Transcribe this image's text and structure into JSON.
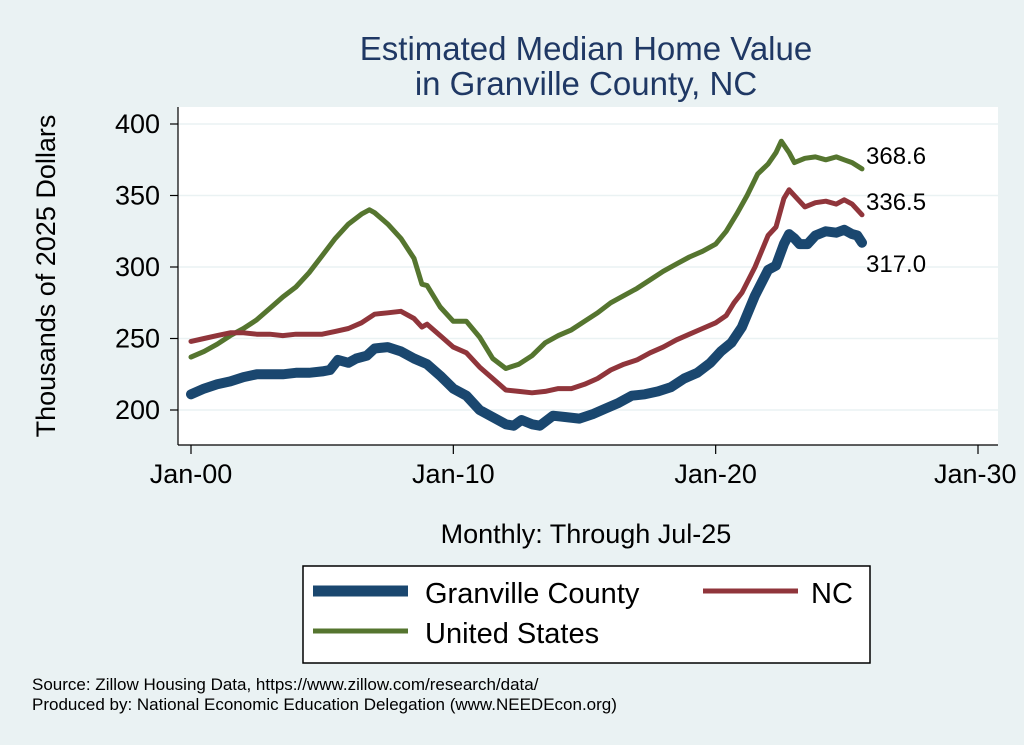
{
  "chart_data": {
    "type": "line",
    "title": [
      "Estimated Median Home Value",
      "in Granville County, NC"
    ],
    "xlabel": "Monthly: Through Jul-25",
    "ylabel": "Thousands of 2025 Dollars",
    "x_ticks": [
      "Jan-00",
      "Jan-10",
      "Jan-20",
      "Jan-30"
    ],
    "x_range": [
      2000,
      2030
    ],
    "ylim": [
      185,
      410
    ],
    "y_ticks": [
      200,
      250,
      300,
      350,
      400
    ],
    "grid": true,
    "legend_position": "bottom",
    "series": [
      {
        "name": "Granville County",
        "color": "#1a476f",
        "end_value": "317.0",
        "points": [
          [
            2000.0,
            211
          ],
          [
            2000.5,
            215
          ],
          [
            2001.0,
            218
          ],
          [
            2001.5,
            220
          ],
          [
            2002.0,
            223
          ],
          [
            2002.5,
            225
          ],
          [
            2003.0,
            225
          ],
          [
            2003.5,
            225
          ],
          [
            2004.0,
            226
          ],
          [
            2004.5,
            226
          ],
          [
            2005.0,
            227
          ],
          [
            2005.3,
            228
          ],
          [
            2005.6,
            235
          ],
          [
            2006.0,
            233
          ],
          [
            2006.3,
            236
          ],
          [
            2006.7,
            238
          ],
          [
            2007.0,
            243
          ],
          [
            2007.5,
            244
          ],
          [
            2008.0,
            241
          ],
          [
            2008.5,
            236
          ],
          [
            2009.0,
            232
          ],
          [
            2009.5,
            224
          ],
          [
            2010.0,
            215
          ],
          [
            2010.5,
            210
          ],
          [
            2011.0,
            200
          ],
          [
            2011.5,
            195
          ],
          [
            2012.0,
            190
          ],
          [
            2012.3,
            189
          ],
          [
            2012.6,
            193
          ],
          [
            2013.0,
            190
          ],
          [
            2013.3,
            189
          ],
          [
            2013.8,
            196
          ],
          [
            2014.3,
            195
          ],
          [
            2014.8,
            194
          ],
          [
            2015.3,
            197
          ],
          [
            2015.8,
            201
          ],
          [
            2016.3,
            205
          ],
          [
            2016.8,
            210
          ],
          [
            2017.3,
            211
          ],
          [
            2017.8,
            213
          ],
          [
            2018.3,
            216
          ],
          [
            2018.8,
            222
          ],
          [
            2019.3,
            226
          ],
          [
            2019.8,
            233
          ],
          [
            2020.2,
            241
          ],
          [
            2020.6,
            247
          ],
          [
            2021.0,
            258
          ],
          [
            2021.5,
            280
          ],
          [
            2022.0,
            298
          ],
          [
            2022.3,
            301
          ],
          [
            2022.6,
            316
          ],
          [
            2022.8,
            323
          ],
          [
            2023.0,
            320
          ],
          [
            2023.2,
            316
          ],
          [
            2023.5,
            316
          ],
          [
            2023.8,
            322
          ],
          [
            2024.2,
            325
          ],
          [
            2024.6,
            324
          ],
          [
            2024.9,
            326
          ],
          [
            2025.2,
            323
          ],
          [
            2025.4,
            322
          ],
          [
            2025.58,
            317
          ]
        ]
      },
      {
        "name": "NC",
        "color": "#90353b",
        "end_value": "336.5",
        "points": [
          [
            2000.0,
            248
          ],
          [
            2000.5,
            250
          ],
          [
            2001.0,
            252
          ],
          [
            2001.5,
            254
          ],
          [
            2002.0,
            254
          ],
          [
            2002.5,
            253
          ],
          [
            2003.0,
            253
          ],
          [
            2003.5,
            252
          ],
          [
            2004.0,
            253
          ],
          [
            2004.5,
            253
          ],
          [
            2005.0,
            253
          ],
          [
            2005.5,
            255
          ],
          [
            2006.0,
            257
          ],
          [
            2006.5,
            261
          ],
          [
            2007.0,
            267
          ],
          [
            2007.5,
            268
          ],
          [
            2008.0,
            269
          ],
          [
            2008.5,
            264
          ],
          [
            2008.8,
            258
          ],
          [
            2009.0,
            260
          ],
          [
            2009.5,
            252
          ],
          [
            2010.0,
            244
          ],
          [
            2010.5,
            240
          ],
          [
            2011.0,
            230
          ],
          [
            2011.5,
            222
          ],
          [
            2012.0,
            214
          ],
          [
            2012.5,
            213
          ],
          [
            2013.0,
            212
          ],
          [
            2013.5,
            213
          ],
          [
            2014.0,
            215
          ],
          [
            2014.5,
            215
          ],
          [
            2015.0,
            218
          ],
          [
            2015.5,
            222
          ],
          [
            2016.0,
            228
          ],
          [
            2016.5,
            232
          ],
          [
            2017.0,
            235
          ],
          [
            2017.5,
            240
          ],
          [
            2018.0,
            244
          ],
          [
            2018.5,
            249
          ],
          [
            2019.0,
            253
          ],
          [
            2019.5,
            257
          ],
          [
            2020.0,
            261
          ],
          [
            2020.4,
            266
          ],
          [
            2020.7,
            275
          ],
          [
            2021.0,
            282
          ],
          [
            2021.5,
            300
          ],
          [
            2022.0,
            322
          ],
          [
            2022.3,
            328
          ],
          [
            2022.6,
            348
          ],
          [
            2022.8,
            354
          ],
          [
            2023.1,
            348
          ],
          [
            2023.4,
            342
          ],
          [
            2023.8,
            345
          ],
          [
            2024.2,
            346
          ],
          [
            2024.6,
            344
          ],
          [
            2024.9,
            347
          ],
          [
            2025.2,
            344
          ],
          [
            2025.58,
            336.5
          ]
        ]
      },
      {
        "name": "United States",
        "color": "#55752f",
        "end_value": "368.6",
        "points": [
          [
            2000.0,
            237
          ],
          [
            2000.5,
            241
          ],
          [
            2001.0,
            246
          ],
          [
            2001.5,
            252
          ],
          [
            2002.0,
            257
          ],
          [
            2002.5,
            263
          ],
          [
            2003.0,
            271
          ],
          [
            2003.5,
            279
          ],
          [
            2004.0,
            286
          ],
          [
            2004.5,
            296
          ],
          [
            2005.0,
            308
          ],
          [
            2005.5,
            320
          ],
          [
            2006.0,
            330
          ],
          [
            2006.5,
            337
          ],
          [
            2006.8,
            340
          ],
          [
            2007.0,
            338
          ],
          [
            2007.5,
            330
          ],
          [
            2008.0,
            320
          ],
          [
            2008.5,
            306
          ],
          [
            2008.8,
            288
          ],
          [
            2009.0,
            287
          ],
          [
            2009.5,
            272
          ],
          [
            2010.0,
            262
          ],
          [
            2010.5,
            262
          ],
          [
            2011.0,
            251
          ],
          [
            2011.5,
            236
          ],
          [
            2012.0,
            229
          ],
          [
            2012.5,
            232
          ],
          [
            2013.0,
            238
          ],
          [
            2013.5,
            247
          ],
          [
            2014.0,
            252
          ],
          [
            2014.5,
            256
          ],
          [
            2015.0,
            262
          ],
          [
            2015.5,
            268
          ],
          [
            2016.0,
            275
          ],
          [
            2016.5,
            280
          ],
          [
            2017.0,
            285
          ],
          [
            2017.5,
            291
          ],
          [
            2018.0,
            297
          ],
          [
            2018.5,
            302
          ],
          [
            2019.0,
            307
          ],
          [
            2019.5,
            311
          ],
          [
            2020.0,
            316
          ],
          [
            2020.4,
            325
          ],
          [
            2020.8,
            337
          ],
          [
            2021.2,
            350
          ],
          [
            2021.6,
            365
          ],
          [
            2022.0,
            372
          ],
          [
            2022.3,
            380
          ],
          [
            2022.5,
            388
          ],
          [
            2022.8,
            380
          ],
          [
            2023.0,
            373
          ],
          [
            2023.4,
            376
          ],
          [
            2023.8,
            377
          ],
          [
            2024.2,
            375
          ],
          [
            2024.6,
            377
          ],
          [
            2024.9,
            375
          ],
          [
            2025.2,
            373
          ],
          [
            2025.58,
            368.6
          ]
        ]
      }
    ]
  },
  "source_lines": [
    "Source: Zillow Housing Data, https://www.zillow.com/research/data/",
    "Produced by: National Economic Education Delegation (www.NEEDEcon.org)"
  ]
}
